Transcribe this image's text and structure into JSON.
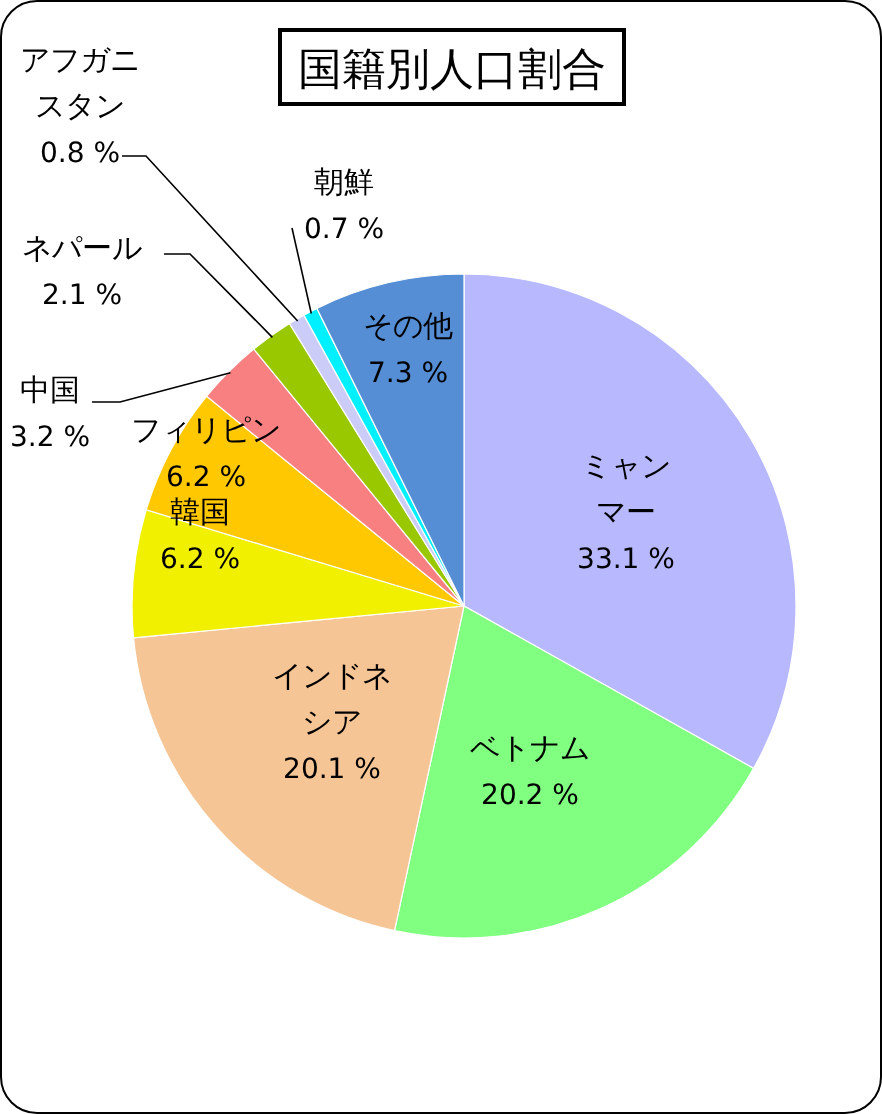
{
  "chart_data": {
    "type": "pie",
    "title": "国籍別人口割合",
    "categories": [
      "ミャンマー",
      "ベトナム",
      "インドネシア",
      "韓国",
      "フィリピン",
      "中国",
      "ネパール",
      "アフガニスタン",
      "朝鮮",
      "その他"
    ],
    "values": [
      33.1,
      20.2,
      20.1,
      6.2,
      6.2,
      3.2,
      2.1,
      0.8,
      0.7,
      7.3
    ],
    "colors": [
      "#b8b8ff",
      "#80ff80",
      "#f5c596",
      "#f0f000",
      "#ffc800",
      "#f88080",
      "#99c800",
      "#ccccf8",
      "#00f0ff",
      "#558ed5"
    ],
    "value_labels": [
      "33.1 %",
      "20.2 %",
      "20.1 %",
      "6.2 %",
      "6.2 %",
      "3.2 %",
      "2.1 %",
      "0.8 %",
      "0.7 %",
      "7.3 %"
    ]
  }
}
